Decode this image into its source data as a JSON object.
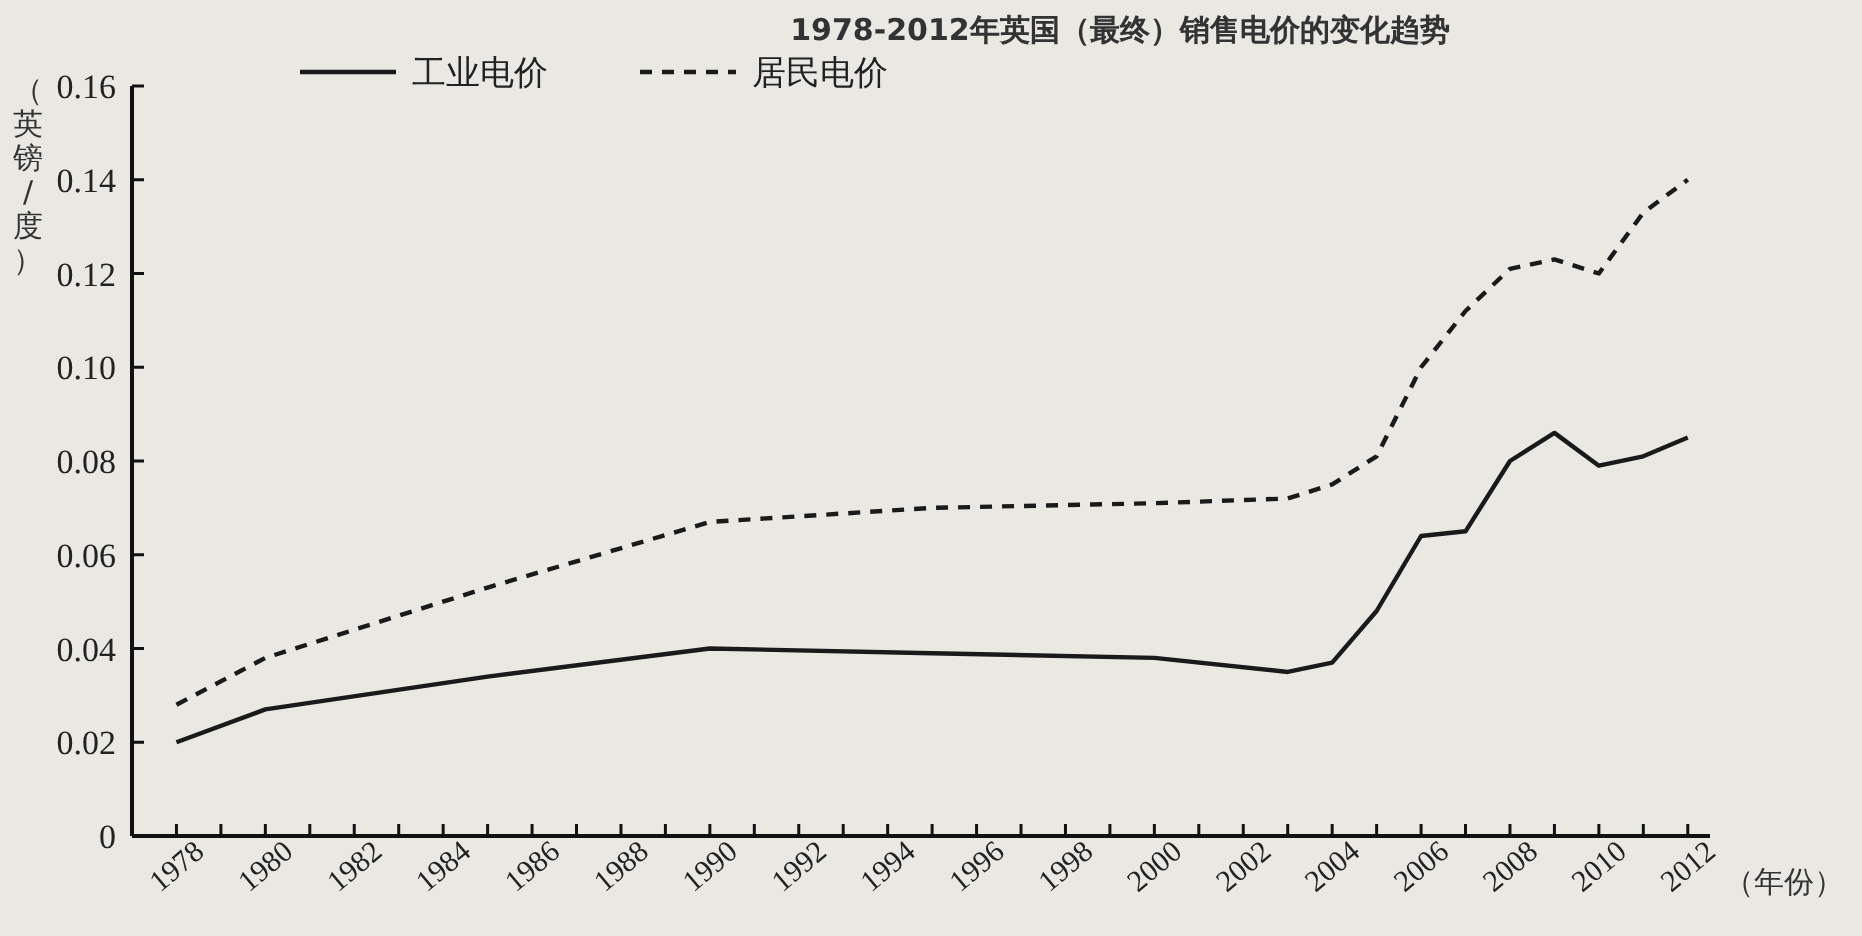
{
  "chart_data": {
    "type": "line",
    "title": "1978-2012年英国（最终）销售电价的变化趋势",
    "xlabel": "（年份）",
    "ylabel": "（英镑/度）",
    "x": [
      1978,
      1980,
      1985,
      1990,
      1995,
      2000,
      2003,
      2004,
      2005,
      2006,
      2007,
      2008,
      2009,
      2010,
      2011,
      2012
    ],
    "series": [
      {
        "name": "工业电价",
        "color": "#1a1a1a",
        "line_style": "solid",
        "values": [
          0.02,
          0.027,
          0.034,
          0.04,
          0.039,
          0.038,
          0.035,
          0.037,
          0.048,
          0.064,
          0.065,
          0.08,
          0.086,
          0.079,
          0.081,
          0.085
        ]
      },
      {
        "name": "居民电价",
        "color": "#1a1a1a",
        "line_style": "dashed",
        "values": [
          0.028,
          0.038,
          0.053,
          0.067,
          0.07,
          0.071,
          0.072,
          0.075,
          0.081,
          0.1,
          0.112,
          0.121,
          0.123,
          0.12,
          0.133,
          0.14
        ]
      }
    ],
    "xlim": [
      1977,
      2012.5
    ],
    "xticks": [
      1978,
      {
        "value": 1979,
        "label": null
      },
      1980,
      {
        "value": 1981,
        "label": null
      },
      1982,
      {
        "value": 1983,
        "label": null
      },
      1984,
      {
        "value": 1985,
        "label": null
      },
      1986,
      {
        "value": 1987,
        "label": null
      },
      1988,
      {
        "value": 1989,
        "label": null
      },
      1990,
      {
        "value": 1991,
        "label": null
      },
      1992,
      {
        "value": 1993,
        "label": null
      },
      1994,
      {
        "value": 1995,
        "label": null
      },
      1996,
      {
        "value": 1997,
        "label": null
      },
      1998,
      {
        "value": 1999,
        "label": null
      },
      2000,
      {
        "value": 2001,
        "label": null
      },
      2002,
      {
        "value": 2003,
        "label": null
      },
      2004,
      {
        "value": 2005,
        "label": null
      },
      2006,
      {
        "value": 2007,
        "label": null
      },
      2008,
      {
        "value": 2009,
        "label": null
      },
      2010,
      {
        "value": 2011,
        "label": null
      },
      2012
    ],
    "ylim": [
      0,
      0.16
    ],
    "yticks": [
      0,
      0.02,
      0.04,
      0.06,
      0.08,
      {
        "value": 0.1,
        "label": "0.10"
      },
      0.12,
      0.14,
      0.16
    ],
    "legend": "top left",
    "grid": false
  }
}
